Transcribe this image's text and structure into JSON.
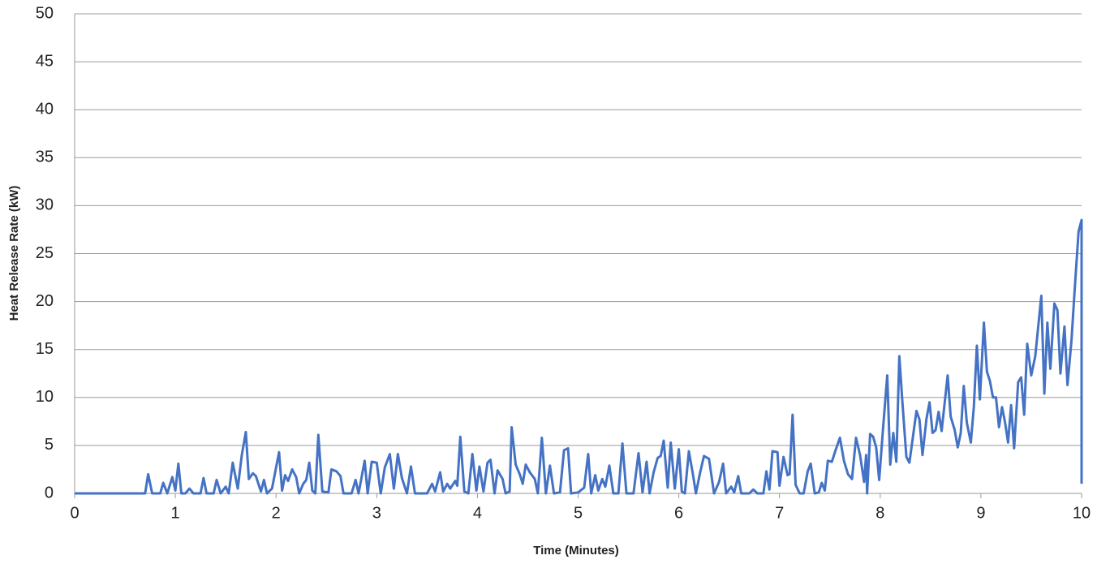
{
  "chart_data": {
    "type": "line",
    "xlabel": "Time (Minutes)",
    "ylabel": "Heat Release Rate (kW)",
    "color": "#4472c4",
    "grid": true,
    "xlim": [
      0,
      10
    ],
    "ylim": [
      0,
      50
    ],
    "xticks": [
      0,
      1,
      2,
      3,
      4,
      5,
      6,
      7,
      8,
      9,
      10
    ],
    "yticks": [
      0,
      5,
      10,
      15,
      20,
      25,
      30,
      35,
      40,
      45,
      50
    ],
    "x": [
      0,
      0.68,
      0.7,
      0.73,
      0.77,
      0.85,
      0.88,
      0.92,
      0.97,
      1.0,
      1.03,
      1.06,
      1.1,
      1.14,
      1.18,
      1.25,
      1.28,
      1.31,
      1.38,
      1.41,
      1.45,
      1.5,
      1.53,
      1.57,
      1.62,
      1.66,
      1.7,
      1.73,
      1.77,
      1.8,
      1.85,
      1.88,
      1.91,
      1.96,
      2.03,
      2.06,
      2.09,
      2.12,
      2.16,
      2.2,
      2.23,
      2.27,
      2.3,
      2.33,
      2.36,
      2.39,
      2.42,
      2.46,
      2.52,
      2.55,
      2.6,
      2.64,
      2.67,
      2.75,
      2.79,
      2.82,
      2.88,
      2.91,
      2.95,
      3.0,
      3.04,
      3.08,
      3.13,
      3.17,
      3.21,
      3.25,
      3.3,
      3.34,
      3.38,
      3.5,
      3.55,
      3.58,
      3.63,
      3.66,
      3.7,
      3.73,
      3.78,
      3.8,
      3.83,
      3.87,
      3.91,
      3.95,
      3.99,
      4.02,
      4.06,
      4.1,
      4.13,
      4.17,
      4.2,
      4.25,
      4.28,
      4.32,
      4.34,
      4.38,
      4.42,
      4.45,
      4.48,
      4.52,
      4.57,
      4.6,
      4.64,
      4.68,
      4.72,
      4.76,
      4.82,
      4.86,
      4.9,
      4.93,
      5.0,
      5.06,
      5.1,
      5.13,
      5.17,
      5.2,
      5.24,
      5.27,
      5.31,
      5.35,
      5.4,
      5.44,
      5.48,
      5.55,
      5.6,
      5.64,
      5.68,
      5.71,
      5.75,
      5.79,
      5.82,
      5.85,
      5.89,
      5.92,
      5.96,
      6.0,
      6.03,
      6.06,
      6.1,
      6.14,
      6.17,
      6.21,
      6.25,
      6.3,
      6.35,
      6.4,
      6.44,
      6.47,
      6.52,
      6.55,
      6.59,
      6.62,
      6.7,
      6.74,
      6.78,
      6.84,
      6.87,
      6.9,
      6.93,
      6.98,
      7.0,
      7.04,
      7.08,
      7.1,
      7.13,
      7.16,
      7.2,
      7.24,
      7.28,
      7.31,
      7.35,
      7.39,
      7.42,
      7.45,
      7.48,
      7.52,
      7.56,
      7.6,
      7.64,
      7.68,
      7.72,
      7.76,
      7.8,
      7.84,
      7.86,
      7.87,
      7.9,
      7.93,
      7.96,
      7.99,
      8.03,
      8.07,
      8.1,
      8.13,
      8.16,
      8.19,
      8.22,
      8.26,
      8.29,
      8.32,
      8.36,
      8.39,
      8.42,
      8.46,
      8.49,
      8.52,
      8.55,
      8.58,
      8.61,
      8.67,
      8.7,
      8.74,
      8.77,
      8.8,
      8.83,
      8.86,
      8.9,
      8.93,
      8.96,
      8.99,
      9.03,
      9.06,
      9.09,
      9.12,
      9.15,
      9.18,
      9.21,
      9.24,
      9.27,
      9.3,
      9.33,
      9.37,
      9.4,
      9.43,
      9.46,
      9.5,
      9.54,
      9.6,
      9.63,
      9.66,
      9.69,
      9.73,
      9.76,
      9.79,
      9.83,
      9.86,
      9.9,
      9.93,
      9.97,
      10,
      10
    ],
    "values": [
      0,
      0,
      0,
      2.0,
      0,
      0,
      1.1,
      0,
      1.7,
      0.3,
      3.1,
      0,
      0,
      0.5,
      0,
      0,
      1.6,
      0,
      0,
      1.4,
      0,
      0.7,
      0,
      3.2,
      0.5,
      4,
      6.4,
      1.5,
      2.1,
      1.8,
      0.2,
      1.4,
      0,
      0.5,
      4.3,
      0.3,
      1.9,
      1.3,
      2.5,
      1.7,
      0,
      1.0,
      1.4,
      3.2,
      0.3,
      0,
      6.1,
      0.2,
      0.1,
      2.5,
      2.3,
      1.8,
      0,
      0,
      1.4,
      0,
      3.4,
      0,
      3.3,
      3.2,
      0,
      2.7,
      4.1,
      0.5,
      4.1,
      1.6,
      0,
      2.8,
      0,
      0,
      1.0,
      0.2,
      2.2,
      0.2,
      1.0,
      0.5,
      1.3,
      0.8,
      5.9,
      0.2,
      0,
      4.1,
      0.3,
      2.8,
      0.2,
      3.2,
      3.5,
      0,
      2.4,
      1.5,
      0,
      0.2,
      6.9,
      3.0,
      2.0,
      1.0,
      3.0,
      2.2,
      1.5,
      0,
      5.8,
      0,
      2.9,
      0,
      0.1,
      4.5,
      4.7,
      0,
      0.1,
      0.6,
      4.1,
      0,
      1.9,
      0.3,
      1.5,
      0.7,
      2.9,
      0,
      0,
      5.2,
      0,
      0,
      4.2,
      0.1,
      3.3,
      0,
      2.2,
      3.7,
      3.9,
      5.5,
      0.6,
      5.3,
      0.5,
      4.6,
      0.2,
      0,
      4.4,
      2.0,
      0,
      2.1,
      3.9,
      3.6,
      0,
      1.2,
      3.1,
      0,
      0.7,
      0.1,
      1.8,
      0,
      0,
      0.4,
      0,
      0,
      2.3,
      0.4,
      4.4,
      4.3,
      0.8,
      3.8,
      1.9,
      2.0,
      8.2,
      0.9,
      0,
      0,
      2.3,
      3.1,
      0,
      0.1,
      1.1,
      0.3,
      3.4,
      3.3,
      4.6,
      5.8,
      3.4,
      2.0,
      1.5,
      5.8,
      4.0,
      1.2,
      4.0,
      0,
      6.2,
      5.9,
      4.8,
      1.4,
      7.0,
      12.3,
      3.0,
      6.3,
      3.3,
      14.3,
      9.6,
      3.8,
      3.2,
      5.5,
      8.6,
      7.7,
      4.0,
      7.8,
      9.5,
      6.3,
      6.6,
      8.5,
      6.5,
      12.3,
      8.0,
      6.6,
      4.8,
      6.3,
      11.2,
      7.4,
      5.3,
      9.0,
      15.4,
      9.8,
      17.8,
      12.7,
      11.7,
      10.0,
      10.0,
      6.9,
      9.0,
      7.4,
      5.3,
      9.2,
      4.7,
      11.6,
      12.1,
      8.2,
      15.6,
      12.3,
      14.3,
      20.6,
      10.4,
      17.8,
      13.0,
      19.8,
      19.1,
      12.5,
      17.4,
      11.3,
      16.0,
      21.0,
      27.3,
      28.5,
      1.0
    ]
  }
}
